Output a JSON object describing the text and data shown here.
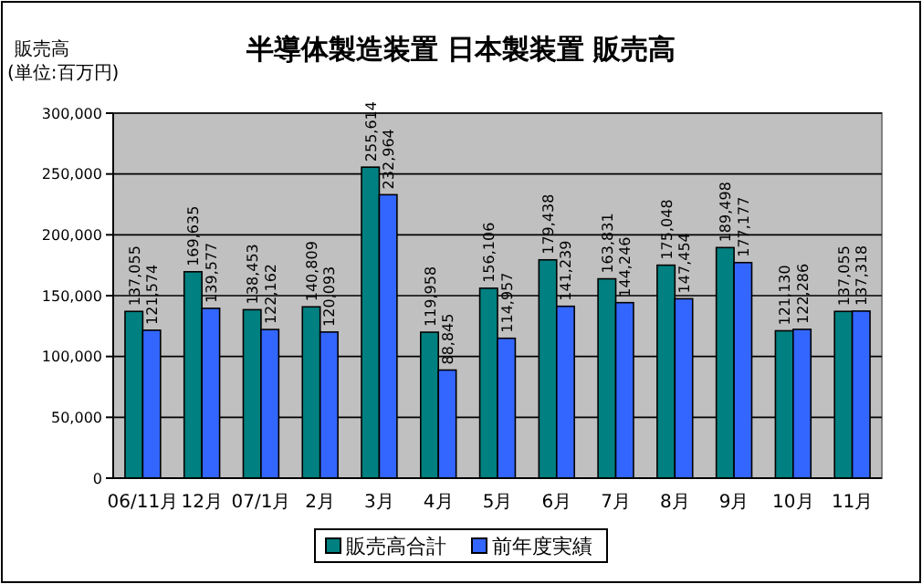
{
  "chart_data": {
    "type": "bar",
    "title": "半導体製造装置 日本製装置 販売高",
    "ylabel": "販売高",
    "annotations": [
      "(単位:百万円)"
    ],
    "categories": [
      "06/11月",
      "12月",
      "07/1月",
      "2月",
      "3月",
      "4月",
      "5月",
      "6月",
      "7月",
      "8月",
      "9月",
      "10月",
      "11月"
    ],
    "series": [
      {
        "name": "販売高合計",
        "color": "#008080",
        "values": [
          137055,
          169635,
          138453,
          140809,
          255614,
          119958,
          156106,
          179438,
          163831,
          175048,
          189498,
          121130,
          137055
        ],
        "value_labels": [
          "137,055",
          "169,635",
          "138,453",
          "140,809",
          "255,614",
          "119,958",
          "156,106",
          "179,438",
          "163,831",
          "175,048",
          "189,498",
          "121,130",
          "137,055"
        ]
      },
      {
        "name": "前年度実績",
        "color": "#3366ff",
        "values": [
          121574,
          139577,
          122162,
          120093,
          232964,
          88845,
          114957,
          141239,
          144246,
          147454,
          177177,
          122286,
          137318
        ],
        "value_labels": [
          "121,574",
          "139,577",
          "122,162",
          "120,093",
          "232,964",
          "88,845",
          "114,957",
          "141,239",
          "144,246",
          "147,454",
          "177,177",
          "122,286",
          "137,318"
        ]
      }
    ],
    "ylim": [
      0,
      300000
    ],
    "yticks": [
      {
        "value": 0,
        "label": "0"
      },
      {
        "value": 50000,
        "label": "50,000"
      },
      {
        "value": 100000,
        "label": "100,000"
      },
      {
        "value": 150000,
        "label": "150,000"
      },
      {
        "value": 200000,
        "label": "200,000"
      },
      {
        "value": 250000,
        "label": "250,000"
      },
      {
        "value": 300000,
        "label": "300,000"
      }
    ],
    "grid": "y",
    "legend": "bottom"
  }
}
